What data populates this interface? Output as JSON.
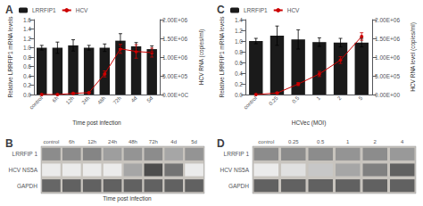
{
  "chart_data": [
    {
      "type": "bar",
      "title": "A",
      "categories": [
        "control",
        "6h",
        "12h",
        "24h",
        "48h",
        "72h",
        "4d",
        "5d"
      ],
      "series": [
        {
          "name": "LRRFIP1",
          "type": "bar",
          "color": "#1a1a1a",
          "values": [
            1.0,
            1.0,
            1.05,
            1.0,
            1.0,
            1.15,
            1.03,
            0.97
          ],
          "errors": [
            0.05,
            0.12,
            0.12,
            0.05,
            0.08,
            0.15,
            0.08,
            0.07
          ]
        },
        {
          "name": "HCV",
          "type": "line",
          "color": "#cc0000",
          "marker": "circle",
          "axis": "y2",
          "values": [
            0,
            0,
            30000,
            50000,
            550000,
            1220000,
            1150000,
            1120000
          ],
          "errors": [
            0,
            0,
            10000,
            10000,
            80000,
            120000,
            180000,
            120000
          ]
        }
      ],
      "xlabel": "Time post infection",
      "ylabel": "Relative LRRFIP1 mRNA levels",
      "y2label": "HCV RNA (copies/ml)",
      "ylim": [
        0,
        1.6
      ],
      "yticks": [
        {
          "value": 0,
          "label": "0.0"
        },
        0.2,
        0.4,
        0.6,
        0.8,
        {
          "value": 1.0,
          "label": "1.0"
        },
        1.2,
        1.4,
        1.6
      ],
      "y2lim": [
        0,
        2000000
      ],
      "y2ticks": [
        {
          "value": 0,
          "label": "0.00E+0C"
        },
        {
          "value": 500000,
          "label": "5.00E+05"
        },
        {
          "value": 1000000,
          "label": "1.00E+06"
        },
        {
          "value": 1500000,
          "label": "1.50E+06"
        },
        {
          "value": 2000000,
          "label": "2.00E+06"
        }
      ],
      "legend": "upper left",
      "grid": false
    },
    {
      "type": "bar",
      "title": "C",
      "categories": [
        "control",
        "0.25",
        "0.5",
        "1",
        "2",
        "5"
      ],
      "series": [
        {
          "name": "LRRFIP1",
          "type": "bar",
          "color": "#1a1a1a",
          "values": [
            1.0,
            1.1,
            1.03,
            0.98,
            0.97,
            0.97
          ],
          "errors": [
            0.05,
            0.18,
            0.18,
            0.08,
            0.08,
            0.08
          ]
        },
        {
          "name": "HCV",
          "type": "line",
          "color": "#cc0000",
          "marker": "circle",
          "axis": "y2",
          "values": [
            0,
            40000,
            280000,
            550000,
            920000,
            1550000
          ],
          "errors": [
            0,
            10000,
            40000,
            70000,
            90000,
            100000
          ]
        }
      ],
      "xlabel": "HCVec (MOI)",
      "ylabel": "Relative LRRFIP1 mRNA levels",
      "y2label": "HCV RNA level (copies/ml)",
      "ylim": [
        0,
        1.4
      ],
      "yticks": [
        {
          "value": 0,
          "label": "0.0"
        },
        0.2,
        0.4,
        0.6,
        0.8,
        {
          "value": 1.0,
          "label": "1.0"
        },
        1.2,
        1.4
      ],
      "y2lim": [
        0,
        2000000
      ],
      "y2ticks": [
        {
          "value": 0,
          "label": "0.00E+00"
        },
        {
          "value": 500000,
          "label": "5.00E+05"
        },
        {
          "value": 1000000,
          "label": "1.00E+06"
        },
        {
          "value": 1500000,
          "label": "1.50E+06"
        },
        {
          "value": 2000000,
          "label": "2.00E+06"
        }
      ],
      "legend": "upper left",
      "grid": false
    },
    {
      "type": "heatmap",
      "title": "B",
      "categories": [
        "control",
        "6h",
        "12h",
        "24h",
        "48h",
        "72h",
        "4d",
        "5d"
      ],
      "series": [
        {
          "name": "LRRFIP 1",
          "values": [
            0.55,
            0.55,
            0.52,
            0.62,
            0.58,
            0.55,
            0.65,
            0.58
          ]
        },
        {
          "name": "HCV NS5A",
          "values": [
            0.92,
            0.92,
            0.92,
            0.92,
            0.65,
            0.3,
            0.45,
            0.92
          ]
        },
        {
          "name": "GAPDH",
          "values": [
            0.4,
            0.38,
            0.38,
            0.38,
            0.38,
            0.38,
            0.38,
            0.38
          ]
        }
      ],
      "xlabel": "Time post infection"
    },
    {
      "type": "heatmap",
      "title": "D",
      "categories": [
        "control",
        "0.25",
        "0.5",
        "1",
        "2",
        "4"
      ],
      "series": [
        {
          "name": "LRRFIP 1",
          "values": [
            0.55,
            0.55,
            0.55,
            0.58,
            0.55,
            0.6
          ]
        },
        {
          "name": "HCV NS5A",
          "values": [
            0.92,
            0.88,
            0.78,
            0.65,
            0.5,
            0.38
          ]
        },
        {
          "name": "GAPDH",
          "values": [
            0.38,
            0.38,
            0.38,
            0.38,
            0.38,
            0.38
          ]
        }
      ]
    }
  ]
}
